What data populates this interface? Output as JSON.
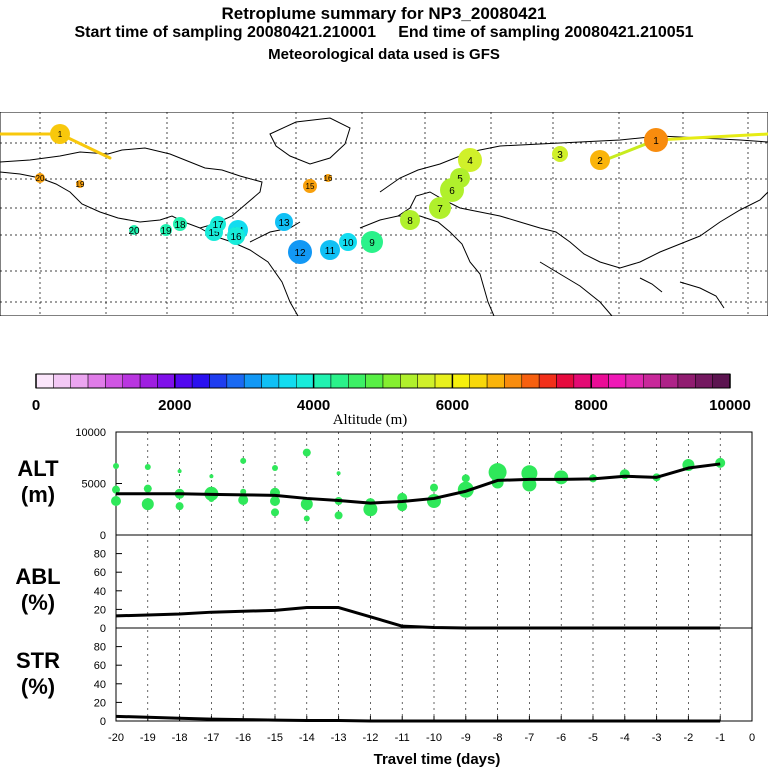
{
  "header": {
    "title": "Retroplume summary for NP3_20080421",
    "start_label": "Start time of sampling 20080421.210001",
    "end_label": "End time of sampling 20080421.210051",
    "met_label": "Meteorological data used is GFS"
  },
  "colorbar": {
    "tick_labels": [
      "0",
      "2000",
      "4000",
      "6000",
      "8000",
      "10000"
    ],
    "label": "Altitude (m)",
    "colors": [
      "#fbe6fb",
      "#f3c8f5",
      "#eba5f0",
      "#e07ce8",
      "#cf55e3",
      "#b935e0",
      "#9f1ee0",
      "#8010ea",
      "#5208ef",
      "#2a10f0",
      "#1f3df0",
      "#1a6af3",
      "#1298f5",
      "#10c0f5",
      "#12dcf0",
      "#18ecda",
      "#20f2b0",
      "#2af28a",
      "#3cf065",
      "#58ef45",
      "#85ef30",
      "#b0f02c",
      "#d0f02a",
      "#e8f01c",
      "#f6f00c",
      "#f8d80a",
      "#fab40a",
      "#f88c0e",
      "#f66010",
      "#f2301a",
      "#e60a3e",
      "#e40a74",
      "#ea0c96",
      "#ef18b6",
      "#e028b0",
      "#c8289a",
      "#ae2288",
      "#901c70",
      "#741860",
      "#5c1450"
    ]
  },
  "map_labels": [
    "1",
    "2",
    "3",
    "4",
    "5",
    "6",
    "7",
    "8",
    "9",
    "10",
    "11",
    "12",
    "13",
    "14",
    "15",
    "16",
    "17",
    "18",
    "19",
    "20"
  ],
  "chart_data": [
    {
      "type": "line",
      "name": "ALT",
      "ylabel": "ALT\n(m)",
      "ylim": [
        0,
        10000
      ],
      "ytick_labels": [
        "0",
        "5000",
        "10000"
      ],
      "x": [
        -20,
        -19,
        -18,
        -17,
        -16,
        -15,
        -14,
        -13,
        -12,
        -11,
        -10,
        -9,
        -8,
        -7,
        -6,
        -5,
        -4,
        -3,
        -2,
        -1
      ],
      "values": [
        4000,
        4000,
        4000,
        3950,
        3900,
        3850,
        3550,
        3350,
        3100,
        3250,
        3550,
        4250,
        5300,
        5400,
        5400,
        5450,
        5700,
        5600,
        6500,
        6900
      ],
      "scatter": [
        {
          "x": -20,
          "y": 6700,
          "r": 3
        },
        {
          "x": -20,
          "y": 4400,
          "r": 4
        },
        {
          "x": -20,
          "y": 3300,
          "r": 5
        },
        {
          "x": -19,
          "y": 6600,
          "r": 3
        },
        {
          "x": -19,
          "y": 4500,
          "r": 4
        },
        {
          "x": -19,
          "y": 3000,
          "r": 6
        },
        {
          "x": -18,
          "y": 6200,
          "r": 2
        },
        {
          "x": -18,
          "y": 4000,
          "r": 5
        },
        {
          "x": -18,
          "y": 2800,
          "r": 4
        },
        {
          "x": -17,
          "y": 5700,
          "r": 2
        },
        {
          "x": -17,
          "y": 4000,
          "r": 7
        },
        {
          "x": -17,
          "y": 3500,
          "r": 3
        },
        {
          "x": -16,
          "y": 7200,
          "r": 3
        },
        {
          "x": -16,
          "y": 4200,
          "r": 3
        },
        {
          "x": -16,
          "y": 3400,
          "r": 5
        },
        {
          "x": -15,
          "y": 6500,
          "r": 3
        },
        {
          "x": -15,
          "y": 4100,
          "r": 5
        },
        {
          "x": -15,
          "y": 3300,
          "r": 5
        },
        {
          "x": -15,
          "y": 2200,
          "r": 4
        },
        {
          "x": -14,
          "y": 8000,
          "r": 4
        },
        {
          "x": -14,
          "y": 3000,
          "r": 6
        },
        {
          "x": -14,
          "y": 1600,
          "r": 3
        },
        {
          "x": -13,
          "y": 6000,
          "r": 2
        },
        {
          "x": -13,
          "y": 3300,
          "r": 4
        },
        {
          "x": -13,
          "y": 1900,
          "r": 4
        },
        {
          "x": -12,
          "y": 3100,
          "r": 5
        },
        {
          "x": -12,
          "y": 2500,
          "r": 7
        },
        {
          "x": -11,
          "y": 3600,
          "r": 5
        },
        {
          "x": -11,
          "y": 2800,
          "r": 5
        },
        {
          "x": -10,
          "y": 4600,
          "r": 4
        },
        {
          "x": -10,
          "y": 3300,
          "r": 7
        },
        {
          "x": -9,
          "y": 5500,
          "r": 4
        },
        {
          "x": -9,
          "y": 4400,
          "r": 8
        },
        {
          "x": -8,
          "y": 6100,
          "r": 9
        },
        {
          "x": -8,
          "y": 5100,
          "r": 6
        },
        {
          "x": -7,
          "y": 6000,
          "r": 8
        },
        {
          "x": -7,
          "y": 4900,
          "r": 7
        },
        {
          "x": -6,
          "y": 5600,
          "r": 7
        },
        {
          "x": -5,
          "y": 5500,
          "r": 4
        },
        {
          "x": -4,
          "y": 5900,
          "r": 5
        },
        {
          "x": -3,
          "y": 5600,
          "r": 4
        },
        {
          "x": -2,
          "y": 6800,
          "r": 6
        },
        {
          "x": -1,
          "y": 7000,
          "r": 5
        }
      ]
    },
    {
      "type": "line",
      "name": "ABL",
      "ylabel": "ABL\n(%)",
      "ylim": [
        0,
        100
      ],
      "ytick_labels": [
        "0",
        "20",
        "40",
        "60",
        "80"
      ],
      "x": [
        -20,
        -19,
        -18,
        -17,
        -16,
        -15,
        -14,
        -13,
        -12,
        -11,
        -10,
        -9,
        -8,
        -7,
        -6,
        -5,
        -4,
        -3,
        -2,
        -1
      ],
      "values": [
        13,
        14,
        15,
        17,
        18,
        19,
        22,
        22,
        12,
        2,
        0.5,
        0,
        0,
        0,
        0,
        0,
        0,
        0,
        0,
        0
      ]
    },
    {
      "type": "line",
      "name": "STR",
      "ylabel": "STR\n(%)",
      "ylim": [
        0,
        100
      ],
      "ytick_labels": [
        "0",
        "20",
        "40",
        "60",
        "80"
      ],
      "x": [
        -20,
        -19,
        -18,
        -17,
        -16,
        -15,
        -14,
        -13,
        -12,
        -11,
        -10,
        -9,
        -8,
        -7,
        -6,
        -5,
        -4,
        -3,
        -2,
        -1
      ],
      "values": [
        5,
        4,
        3,
        2,
        1.5,
        1,
        0.5,
        0.5,
        0,
        0,
        0,
        0,
        0,
        0,
        0,
        0,
        0,
        0,
        0,
        0
      ]
    }
  ],
  "x_axis": {
    "tick_labels": [
      "-20",
      "-19",
      "-18",
      "-17",
      "-16",
      "-15",
      "-14",
      "-13",
      "-12",
      "-11",
      "-10",
      "-9",
      "-8",
      "-7",
      "-6",
      "-5",
      "-4",
      "-3",
      "-2",
      "-1",
      "0"
    ],
    "label": "Travel time (days)"
  }
}
